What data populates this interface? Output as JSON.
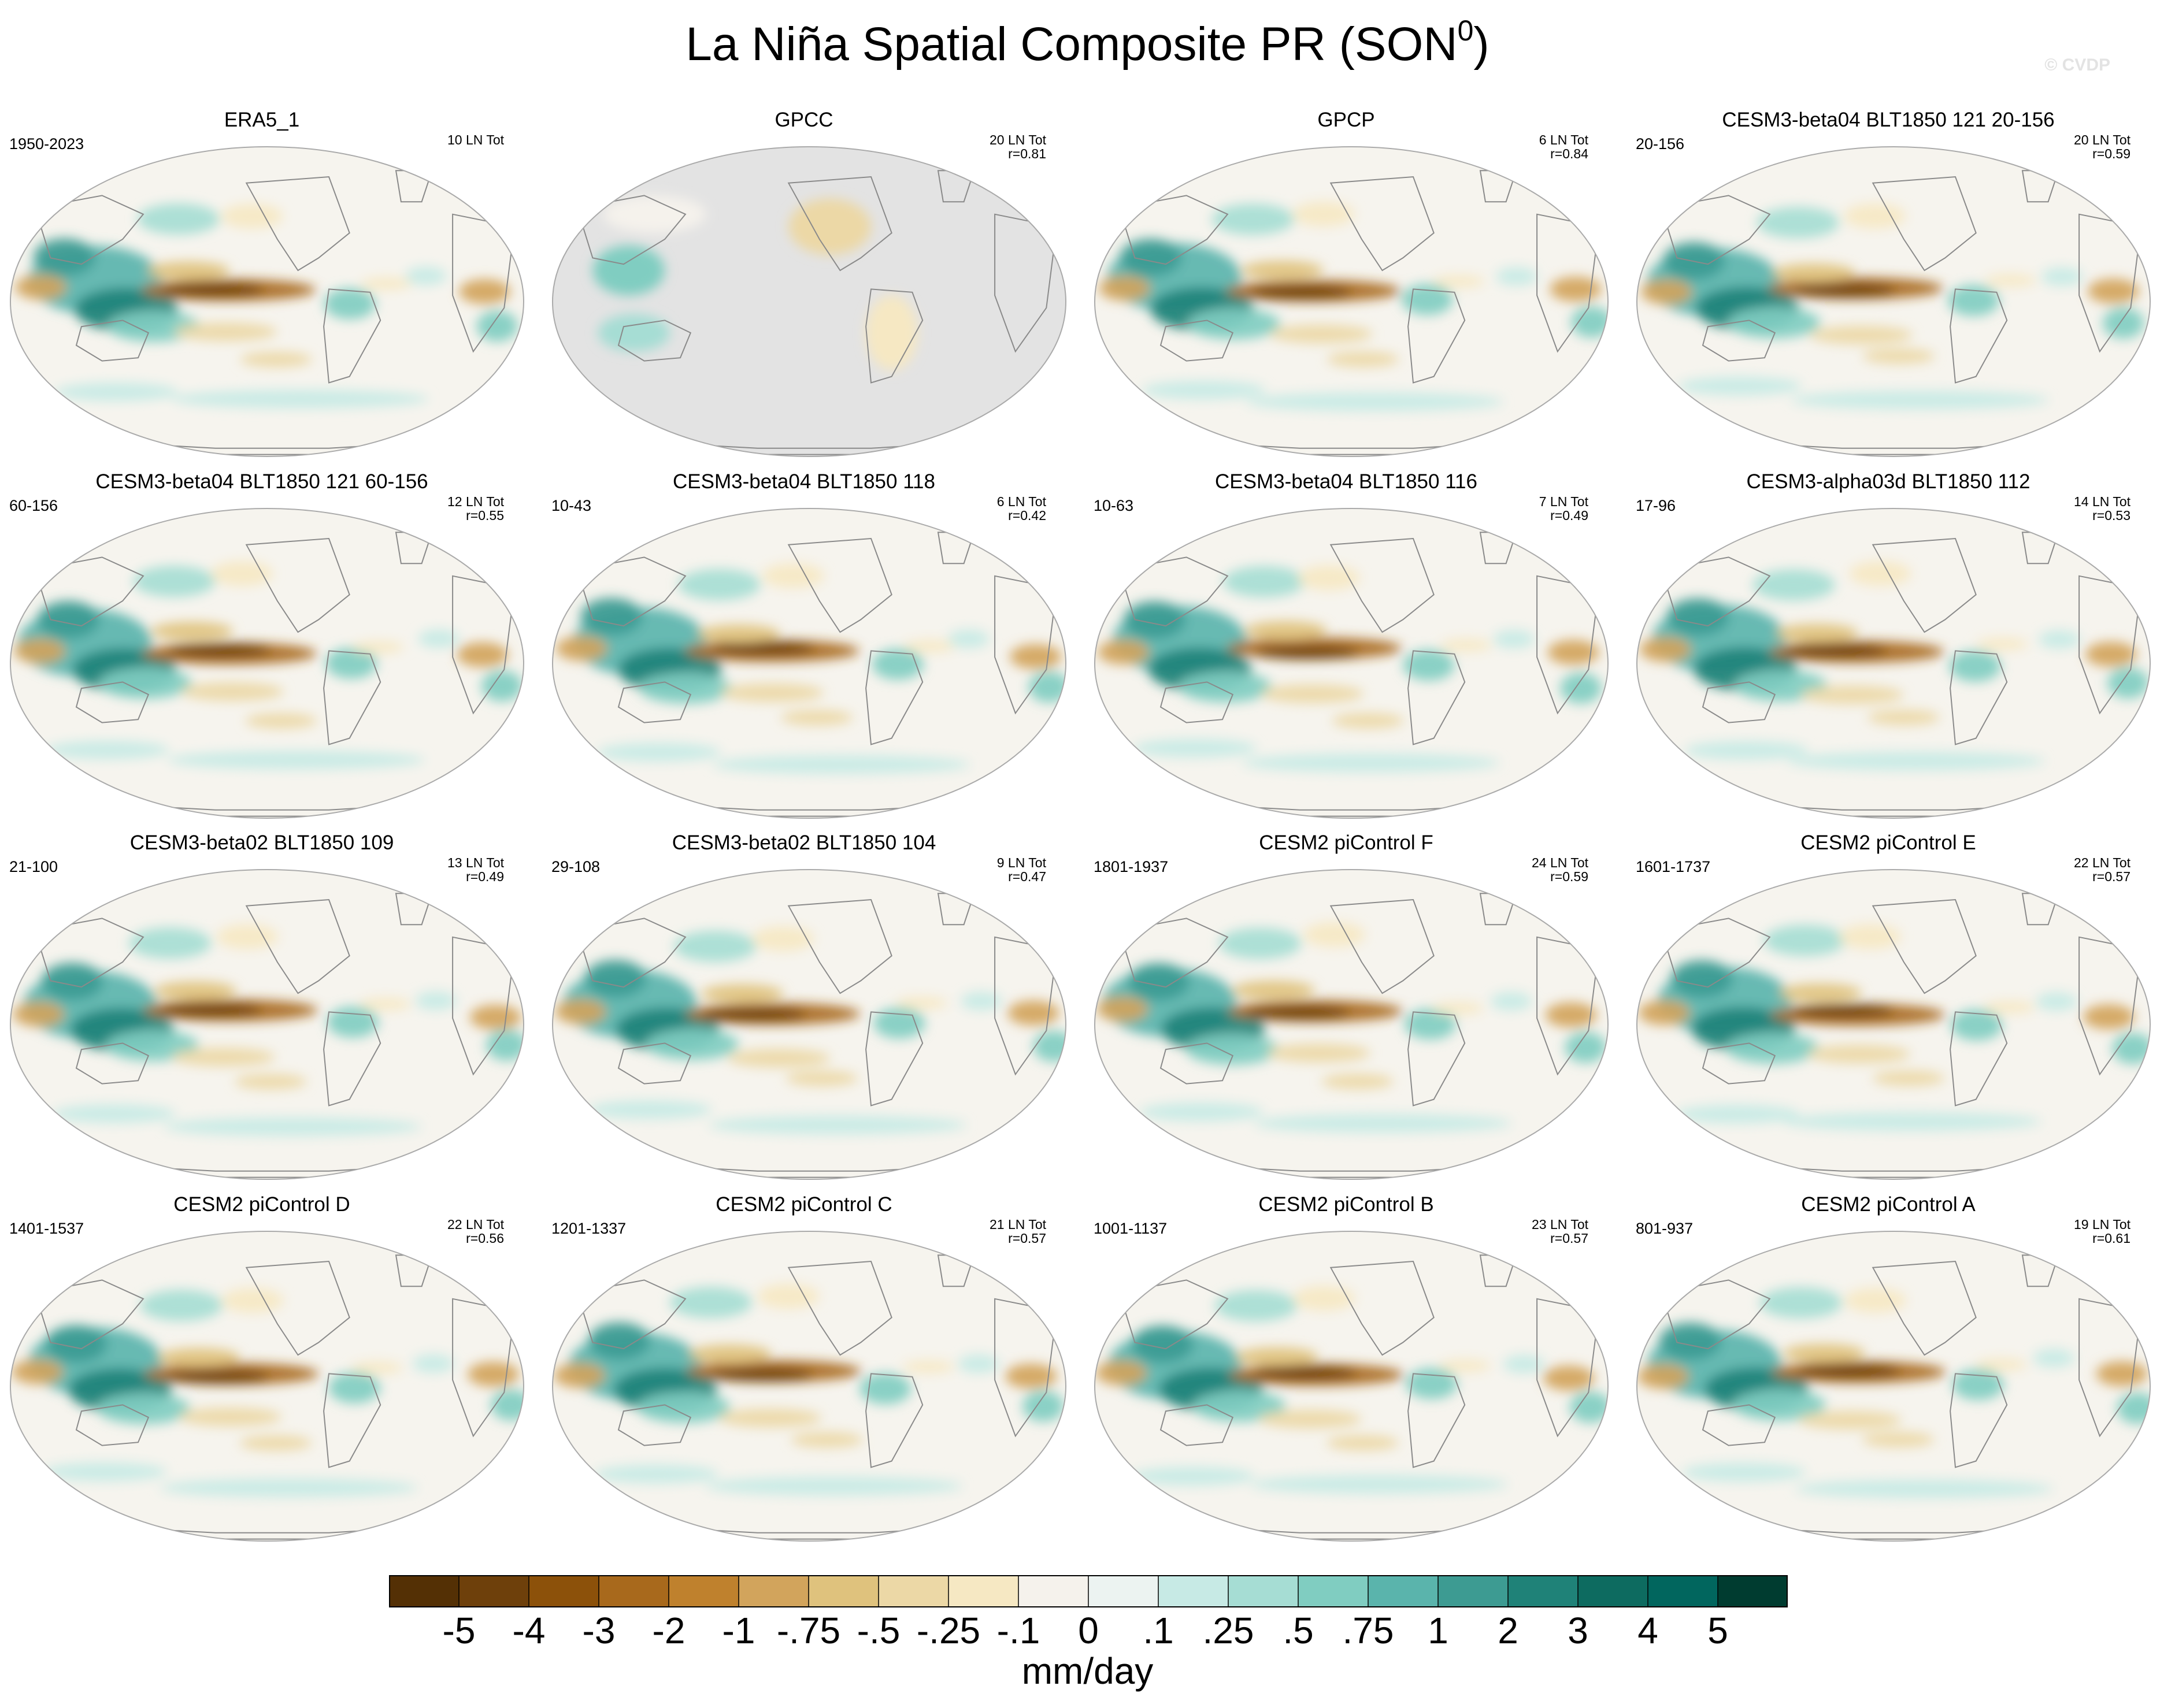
{
  "figure": {
    "title": "La Niña Spatial Composite PR (SON",
    "title_superscript": "0",
    "title_close": ")",
    "watermark": "© CVDP"
  },
  "panels": [
    {
      "title": "ERA5_1",
      "years": "1950-2023",
      "stats": [
        "10 LN Tot"
      ],
      "data_coverage": "global"
    },
    {
      "title": "GPCC",
      "years": "",
      "stats": [
        "20 LN Tot",
        "r=0.81"
      ],
      "data_coverage": "land-only"
    },
    {
      "title": "GPCP",
      "years": "",
      "stats": [
        "6 LN Tot",
        "r=0.84"
      ],
      "data_coverage": "global"
    },
    {
      "title": "CESM3-beta04 BLT1850 121 20-156",
      "years": "20-156",
      "stats": [
        "20 LN Tot",
        "r=0.59"
      ],
      "data_coverage": "global"
    },
    {
      "title": "CESM3-beta04 BLT1850 121 60-156",
      "years": "60-156",
      "stats": [
        "12 LN Tot",
        "r=0.55"
      ],
      "data_coverage": "global"
    },
    {
      "title": "CESM3-beta04 BLT1850 118",
      "years": "10-43",
      "stats": [
        "6 LN Tot",
        "r=0.42"
      ],
      "data_coverage": "global"
    },
    {
      "title": "CESM3-beta04 BLT1850 116",
      "years": "10-63",
      "stats": [
        "7 LN Tot",
        "r=0.49"
      ],
      "data_coverage": "global"
    },
    {
      "title": "CESM3-alpha03d BLT1850 112",
      "years": "17-96",
      "stats": [
        "14 LN Tot",
        "r=0.53"
      ],
      "data_coverage": "global"
    },
    {
      "title": "CESM3-beta02 BLT1850 109",
      "years": "21-100",
      "stats": [
        "13 LN Tot",
        "r=0.49"
      ],
      "data_coverage": "global"
    },
    {
      "title": "CESM3-beta02 BLT1850 104",
      "years": "29-108",
      "stats": [
        "9 LN Tot",
        "r=0.47"
      ],
      "data_coverage": "global"
    },
    {
      "title": "CESM2 piControl F",
      "years": "1801-1937",
      "stats": [
        "24 LN Tot",
        "r=0.59"
      ],
      "data_coverage": "global"
    },
    {
      "title": "CESM2 piControl E",
      "years": "1601-1737",
      "stats": [
        "22 LN Tot",
        "r=0.57"
      ],
      "data_coverage": "global"
    },
    {
      "title": "CESM2 piControl D",
      "years": "1401-1537",
      "stats": [
        "22 LN Tot",
        "r=0.56"
      ],
      "data_coverage": "global"
    },
    {
      "title": "CESM2 piControl C",
      "years": "1201-1337",
      "stats": [
        "21 LN Tot",
        "r=0.57"
      ],
      "data_coverage": "global"
    },
    {
      "title": "CESM2 piControl B",
      "years": "1001-1137",
      "stats": [
        "23 LN Tot",
        "r=0.57"
      ],
      "data_coverage": "global"
    },
    {
      "title": "CESM2 piControl A",
      "years": "801-937",
      "stats": [
        "19 LN Tot",
        "r=0.61"
      ],
      "data_coverage": "global"
    }
  ],
  "colorbar": {
    "units": "mm/day",
    "tick_labels": [
      "-5",
      "-4",
      "-3",
      "-2",
      "-1",
      "-.75",
      "-.5",
      "-.25",
      "-.1",
      "0",
      ".1",
      ".25",
      ".5",
      ".75",
      "1",
      "2",
      "3",
      "4",
      "5"
    ],
    "colors": [
      "#543005",
      "#6e400b",
      "#8c510a",
      "#a8691c",
      "#bf812d",
      "#d2a45c",
      "#dfc27d",
      "#ecd8a6",
      "#f6e8c3",
      "#f5f2ec",
      "#ecf3f1",
      "#c7eae5",
      "#a6ddd4",
      "#80cdc1",
      "#5ab4ac",
      "#3d9b92",
      "#1f8278",
      "#0d6b60",
      "#01665e",
      "#003c30"
    ]
  },
  "map_style": {
    "ocean_base": "#f6f4ee",
    "missing_data": "#e3e3e3",
    "coastline": "#8a8a8a",
    "border": "#aaaaaa"
  }
}
